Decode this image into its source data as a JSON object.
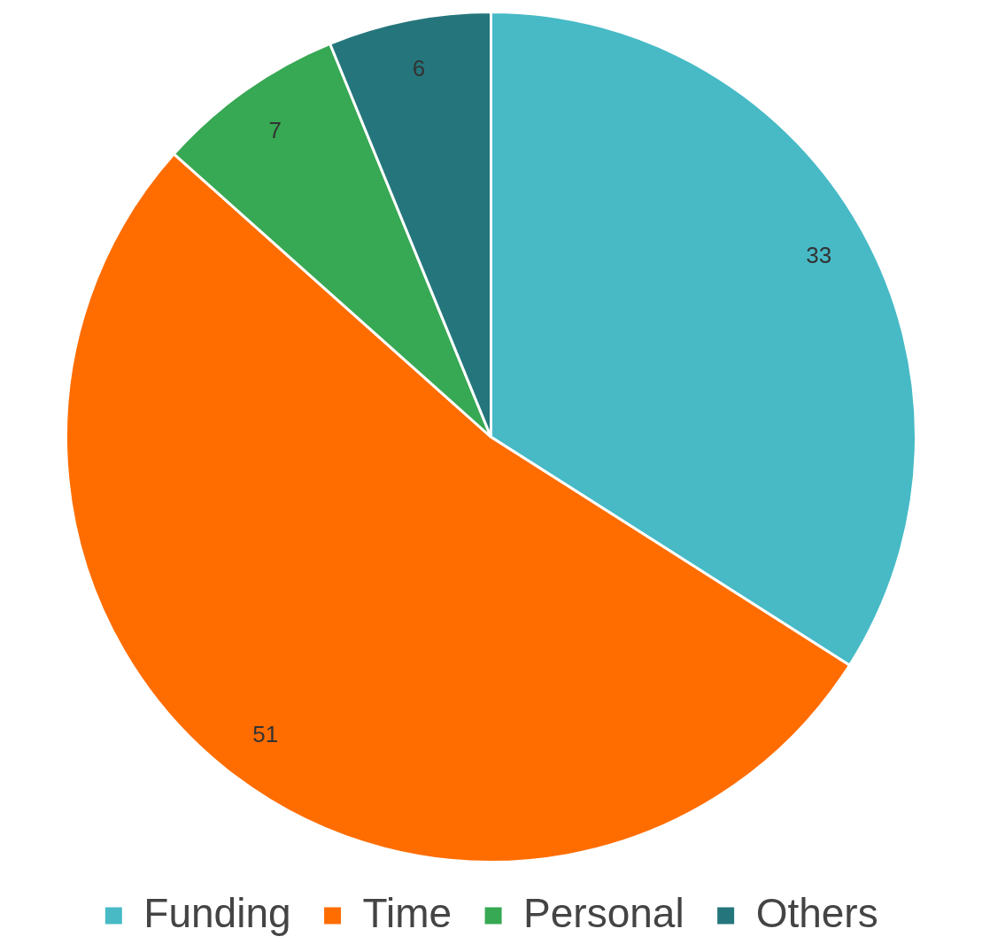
{
  "chart_data": {
    "type": "pie",
    "categories": [
      "Funding",
      "Time",
      "Personal",
      "Others"
    ],
    "values": [
      33,
      51,
      7,
      6
    ],
    "colors": [
      "#47bac6",
      "#ff6d00",
      "#37a853",
      "#24767c"
    ],
    "data_labels": true,
    "legend": "bottom"
  }
}
